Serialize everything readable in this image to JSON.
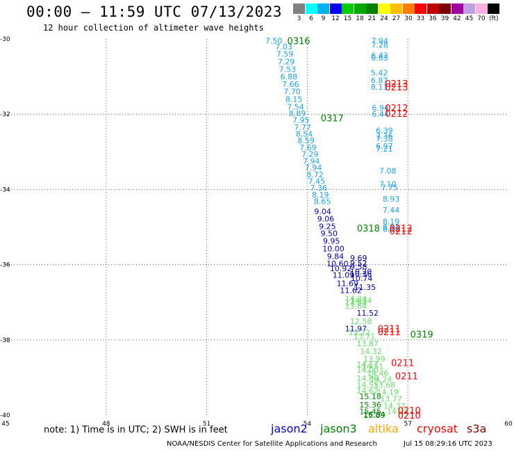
{
  "header": {
    "title": "00:00 – 11:59 UTC 07/13/2023",
    "subtitle": "12 hour collection of altimeter wave heights"
  },
  "colorbar": {
    "labels": [
      "3",
      "6",
      "9",
      "12",
      "15",
      "18",
      "21",
      "24",
      "27",
      "30",
      "33",
      "36",
      "39",
      "42",
      "45",
      "70"
    ],
    "unit": "(ft)",
    "colors": [
      "#808080",
      "#00ffff",
      "#00b0f0",
      "#0000ff",
      "#00cc00",
      "#00aa00",
      "#008000",
      "#ffff00",
      "#ffc000",
      "#ff8000",
      "#ff0000",
      "#c00000",
      "#800000",
      "#a000a0",
      "#c0a0e0",
      "#ffb0e0",
      "#000000"
    ]
  },
  "footer": {
    "note": "note: 1) Time is in UTC; 2) SWH is in feet",
    "satellites": [
      {
        "name": "jason2",
        "color": "#0000cc"
      },
      {
        "name": "jason3",
        "color": "#008000"
      },
      {
        "name": "altika",
        "color": "#ffa500"
      },
      {
        "name": "cryosat",
        "color": "#ff0000"
      },
      {
        "name": "s3a",
        "color": "#8b0000"
      }
    ],
    "credit": "NOAA/NESDIS Center for Satellite Applications and Research",
    "timestamp": "Jul 15 08:29:16 UTC 2023"
  },
  "chart_data": {
    "type": "scatter",
    "xlim": [
      45,
      60
    ],
    "ylim": [
      -40,
      -30
    ],
    "x_ticks": [
      "45",
      "48",
      "51",
      "54",
      "57",
      "60"
    ],
    "y_ticks": [
      "-30",
      "-32",
      "-34",
      "-36",
      "-38",
      "-40"
    ],
    "grid": true,
    "series": [
      {
        "name": "sky-blue track",
        "color": "#1aa3e6",
        "points": [
          {
            "x": 53.0,
            "y": -30.05,
            "v": "7.50"
          },
          {
            "x": 53.3,
            "y": -30.2,
            "v": "7.03"
          },
          {
            "x": 53.33,
            "y": -30.4,
            "v": "7.59"
          },
          {
            "x": 53.37,
            "y": -30.6,
            "v": "7.29"
          },
          {
            "x": 53.41,
            "y": -30.8,
            "v": "7.53"
          },
          {
            "x": 53.45,
            "y": -31.0,
            "v": "6.88"
          },
          {
            "x": 53.5,
            "y": -31.2,
            "v": "7.66"
          },
          {
            "x": 53.55,
            "y": -31.4,
            "v": "7.70"
          },
          {
            "x": 53.6,
            "y": -31.6,
            "v": "8.15"
          },
          {
            "x": 53.65,
            "y": -31.8,
            "v": "7.54"
          },
          {
            "x": 53.7,
            "y": -31.98,
            "v": "8.89"
          },
          {
            "x": 53.81,
            "y": -32.15,
            "v": "7.95"
          },
          {
            "x": 53.86,
            "y": -32.35,
            "v": "7.77"
          },
          {
            "x": 53.91,
            "y": -32.52,
            "v": "8.54"
          },
          {
            "x": 53.96,
            "y": -32.7,
            "v": "8.59"
          },
          {
            "x": 54.02,
            "y": -32.88,
            "v": "7.69"
          },
          {
            "x": 54.08,
            "y": -33.06,
            "v": "7.29"
          },
          {
            "x": 54.12,
            "y": -33.24,
            "v": "7.94"
          },
          {
            "x": 54.18,
            "y": -33.42,
            "v": "7.94"
          },
          {
            "x": 54.23,
            "y": -33.6,
            "v": "8.72"
          },
          {
            "x": 54.28,
            "y": -33.78,
            "v": "7.45"
          },
          {
            "x": 54.34,
            "y": -33.96,
            "v": "7.36"
          },
          {
            "x": 54.39,
            "y": -34.14,
            "v": "8.19"
          },
          {
            "x": 54.45,
            "y": -34.32,
            "v": "8.65"
          },
          {
            "x": 56.16,
            "y": -30.05,
            "v": "7.94"
          },
          {
            "x": 56.16,
            "y": -30.16,
            "v": "7.28"
          },
          {
            "x": 56.16,
            "y": -30.43,
            "v": "6.42"
          },
          {
            "x": 56.16,
            "y": -30.5,
            "v": "6.63"
          },
          {
            "x": 56.15,
            "y": -30.9,
            "v": "5.42"
          },
          {
            "x": 56.15,
            "y": -31.1,
            "v": "6.87"
          },
          {
            "x": 56.15,
            "y": -31.28,
            "v": "8.11"
          },
          {
            "x": 56.18,
            "y": -31.83,
            "v": "6.94"
          },
          {
            "x": 56.18,
            "y": -32.0,
            "v": "6.44"
          },
          {
            "x": 56.3,
            "y": -32.43,
            "v": "6.39"
          },
          {
            "x": 56.3,
            "y": -32.58,
            "v": "7.36"
          },
          {
            "x": 56.3,
            "y": -32.65,
            "v": "7.38"
          },
          {
            "x": 56.3,
            "y": -32.85,
            "v": "6.97"
          },
          {
            "x": 56.3,
            "y": -32.92,
            "v": "7.21"
          },
          {
            "x": 56.4,
            "y": -33.5,
            "v": "7.08"
          },
          {
            "x": 56.4,
            "y": -33.85,
            "v": "7.10"
          },
          {
            "x": 56.45,
            "y": -33.95,
            "v": "7.75"
          },
          {
            "x": 56.5,
            "y": -34.25,
            "v": "8.93"
          },
          {
            "x": 56.5,
            "y": -34.55,
            "v": "7.44"
          },
          {
            "x": 56.5,
            "y": -34.85,
            "v": "8.19"
          },
          {
            "x": 56.5,
            "y": -35.0,
            "v": "8.33"
          },
          {
            "x": 56.5,
            "y": -35.05,
            "v": "8.16"
          }
        ]
      },
      {
        "name": "blue track",
        "color": "#0000aa",
        "points": [
          {
            "x": 54.46,
            "y": -34.58,
            "v": "9.04"
          },
          {
            "x": 54.55,
            "y": -34.78,
            "v": "9.06"
          },
          {
            "x": 54.6,
            "y": -34.98,
            "v": "9.25"
          },
          {
            "x": 54.65,
            "y": -35.17,
            "v": "9.50"
          },
          {
            "x": 54.72,
            "y": -35.37,
            "v": "9.95"
          },
          {
            "x": 54.78,
            "y": -35.57,
            "v": "10.00"
          },
          {
            "x": 54.84,
            "y": -35.78,
            "v": "9.84"
          },
          {
            "x": 54.9,
            "y": -35.97,
            "v": "10.60"
          },
          {
            "x": 55.0,
            "y": -36.1,
            "v": "10.92"
          },
          {
            "x": 55.08,
            "y": -36.28,
            "v": "11.09"
          },
          {
            "x": 55.2,
            "y": -36.5,
            "v": "11.69"
          },
          {
            "x": 55.3,
            "y": -36.68,
            "v": "11.62"
          },
          {
            "x": 55.53,
            "y": -35.82,
            "v": "9.69"
          },
          {
            "x": 55.53,
            "y": -35.96,
            "v": "9.52"
          },
          {
            "x": 55.53,
            "y": -36.05,
            "v": "9.58"
          },
          {
            "x": 55.6,
            "y": -36.18,
            "v": "10.20"
          },
          {
            "x": 55.6,
            "y": -36.25,
            "v": "10.36"
          },
          {
            "x": 55.62,
            "y": -36.36,
            "v": "10.74"
          },
          {
            "x": 55.72,
            "y": -36.6,
            "v": "11.35"
          },
          {
            "x": 55.8,
            "y": -37.28,
            "v": "11.52"
          },
          {
            "x": 55.45,
            "y": -37.7,
            "v": "11.97"
          }
        ]
      },
      {
        "name": "light green track",
        "color": "#66dd66",
        "points": [
          {
            "x": 55.45,
            "y": -36.9,
            "v": "14.34"
          },
          {
            "x": 55.45,
            "y": -37.0,
            "v": "13.88"
          },
          {
            "x": 55.45,
            "y": -37.1,
            "v": "13.64"
          },
          {
            "x": 55.6,
            "y": -37.5,
            "v": "12.58"
          },
          {
            "x": 55.55,
            "y": -37.8,
            "v": "13.22"
          },
          {
            "x": 55.7,
            "y": -37.9,
            "v": "13.71"
          },
          {
            "x": 55.8,
            "y": -38.1,
            "v": "13.87"
          },
          {
            "x": 55.9,
            "y": -38.3,
            "v": "14.32"
          },
          {
            "x": 56.0,
            "y": -38.5,
            "v": "13.99"
          },
          {
            "x": 55.95,
            "y": -38.7,
            "v": "14.51"
          },
          {
            "x": 56.1,
            "y": -38.88,
            "v": "14.46"
          },
          {
            "x": 56.2,
            "y": -39.05,
            "v": "14.24"
          },
          {
            "x": 56.3,
            "y": -39.2,
            "v": "13.68"
          },
          {
            "x": 56.4,
            "y": -39.38,
            "v": "14.19"
          },
          {
            "x": 56.5,
            "y": -39.57,
            "v": "13.77"
          },
          {
            "x": 56.6,
            "y": -39.75,
            "v": "14.37"
          },
          {
            "x": 56.7,
            "y": -39.9,
            "v": "14.38"
          },
          {
            "x": 55.8,
            "y": -38.65,
            "v": "14.17"
          },
          {
            "x": 55.8,
            "y": -38.8,
            "v": "14.00"
          },
          {
            "x": 55.8,
            "y": -39.02,
            "v": "14.86"
          },
          {
            "x": 55.8,
            "y": -39.2,
            "v": "14.55"
          },
          {
            "x": 55.8,
            "y": -39.35,
            "v": "14.62"
          },
          {
            "x": 55.6,
            "y": -36.95,
            "v": "14.34"
          }
        ]
      },
      {
        "name": "green track",
        "color": "#008000",
        "points": [
          {
            "x": 55.88,
            "y": -39.5,
            "v": "15.18"
          },
          {
            "x": 55.88,
            "y": -39.72,
            "v": "15.36"
          },
          {
            "x": 55.88,
            "y": -39.9,
            "v": "15.45"
          },
          {
            "x": 56.0,
            "y": -39.98,
            "v": "16.04"
          },
          {
            "x": 56.0,
            "y": -40.0,
            "v": "15.89"
          }
        ]
      }
    ],
    "time_labels": [
      {
        "x": 53.4,
        "y": -30.05,
        "text": "0316",
        "color": "#008000"
      },
      {
        "x": 54.4,
        "y": -32.1,
        "text": "0317",
        "color": "#008000"
      },
      {
        "x": 56.32,
        "y": -31.18,
        "text": "0213",
        "color": "#ff0000"
      },
      {
        "x": 56.32,
        "y": -31.28,
        "text": "0213",
        "color": "#ff0000"
      },
      {
        "x": 56.32,
        "y": -31.83,
        "text": "0212",
        "color": "#ff0000"
      },
      {
        "x": 56.32,
        "y": -31.98,
        "text": "0212",
        "color": "#ff0000"
      },
      {
        "x": 55.48,
        "y": -35.03,
        "text": "0318",
        "color": "#008000"
      },
      {
        "x": 56.45,
        "y": -35.03,
        "text": "0212",
        "color": "#ff0000"
      },
      {
        "x": 56.45,
        "y": -35.1,
        "text": "0212",
        "color": "#ff0000"
      },
      {
        "x": 56.1,
        "y": -37.7,
        "text": "0211",
        "color": "#ff0000"
      },
      {
        "x": 56.1,
        "y": -37.78,
        "text": "0211",
        "color": "#ff0000"
      },
      {
        "x": 57.07,
        "y": -37.85,
        "text": "0319",
        "color": "#008000"
      },
      {
        "x": 56.5,
        "y": -38.6,
        "text": "0211",
        "color": "#ff0000"
      },
      {
        "x": 56.62,
        "y": -38.96,
        "text": "0211",
        "color": "#ff0000"
      },
      {
        "x": 56.7,
        "y": -39.87,
        "text": "0210",
        "color": "#ff0000"
      },
      {
        "x": 56.7,
        "y": -40.0,
        "text": "0210",
        "color": "#ff0000"
      }
    ]
  }
}
